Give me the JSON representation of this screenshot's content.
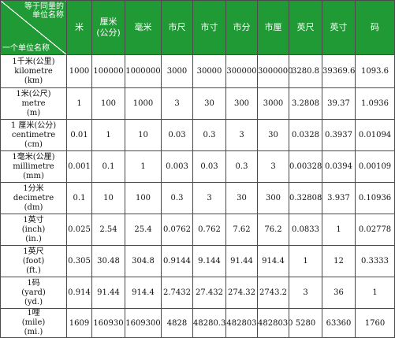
{
  "header": {
    "corner_top": "等于同量的单位名称",
    "corner_bottom": "一个单位名称",
    "columns": [
      "米",
      "厘米(公分)",
      "毫米",
      "市尺",
      "市寸",
      "市分",
      "市厘",
      "英尺",
      "英寸",
      "码"
    ]
  },
  "rows": [
    {
      "unit": [
        "1千米(公里)",
        "kilometre",
        "(km)"
      ],
      "values": [
        "1000",
        "100000",
        "1000000",
        "3000",
        "30000",
        "300000",
        "3000000",
        "3280.8",
        "39369.6",
        "1093.6"
      ]
    },
    {
      "unit": [
        "1米(公尺)",
        "metre",
        "(m)"
      ],
      "values": [
        "1",
        "100",
        "1000",
        "3",
        "30",
        "300",
        "3000",
        "3.2808",
        "39.37",
        "1.0936"
      ]
    },
    {
      "unit": [
        "1 厘米(公分)",
        "centimetre",
        "(cm)"
      ],
      "values": [
        "0.01",
        "1",
        "10",
        "0.03",
        "0.3",
        "3",
        "30",
        "0.0328",
        "0.3937",
        "0.01094"
      ]
    },
    {
      "unit": [
        "1毫米(公厘)",
        "millimetre",
        "(mm)"
      ],
      "values": [
        "0.001",
        "0.1",
        "1",
        "0.003",
        "0.03",
        "0.3",
        "3",
        "0.00328",
        "0.0394",
        "0.00109"
      ]
    },
    {
      "unit": [
        "1分米",
        "decimetre",
        "(dm)"
      ],
      "values": [
        "0.1",
        "10",
        "100",
        "0.3",
        "3",
        "30",
        "300",
        "0.32808",
        "3.937",
        "0.10936"
      ]
    },
    {
      "unit": [
        "1英寸",
        "(inch)",
        "(in.)"
      ],
      "values": [
        "0.025",
        "2.54",
        "25.4",
        "0.0762",
        "0.762",
        "7.62",
        "76.2",
        "0.0833",
        "1",
        "0.02778"
      ]
    },
    {
      "unit": [
        "1英尺",
        "(foot)",
        "(ft.)"
      ],
      "values": [
        "0.305",
        "30.48",
        "304.8",
        "0.9144",
        "9.144",
        "91.44",
        "914.4",
        "1",
        "12",
        "0.3333"
      ]
    },
    {
      "unit": [
        "1码",
        "(yard)",
        "(yd.)"
      ],
      "values": [
        "0.914",
        "91.44",
        "914.4",
        "2.7432",
        "27.432",
        "274.32",
        "2743.2",
        "3",
        "36",
        "1"
      ]
    },
    {
      "unit": [
        "1哩",
        "(mile)",
        "(mi.)"
      ],
      "values": [
        "1609",
        "160930",
        "1609300",
        "4828",
        "48280.3",
        "482803",
        "4828030",
        "5280",
        "63360",
        "1760"
      ]
    }
  ]
}
